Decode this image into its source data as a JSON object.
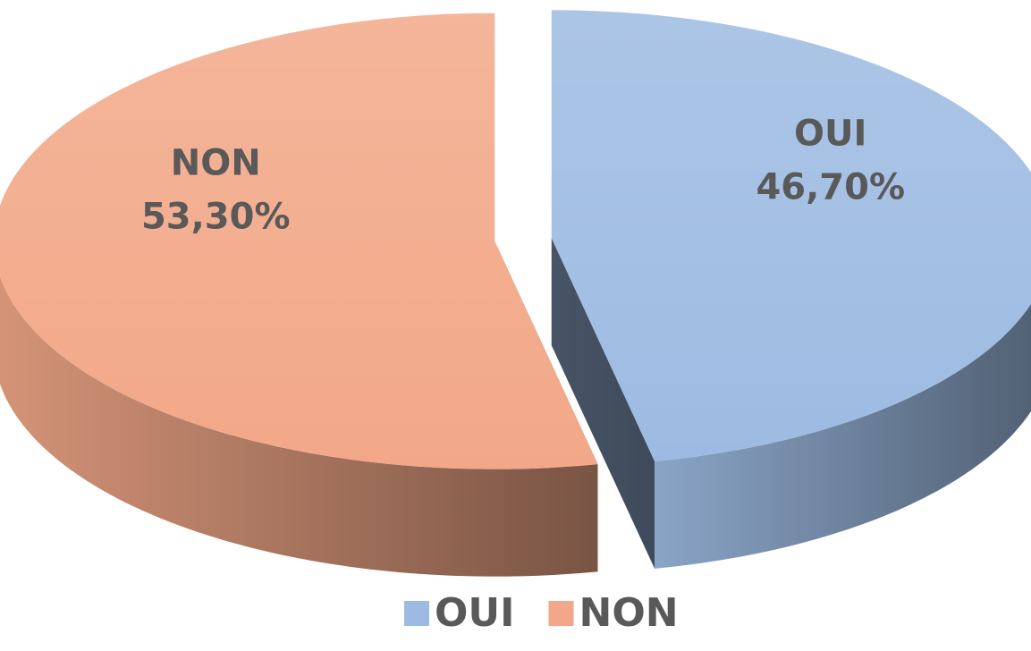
{
  "chart_data": {
    "type": "pie",
    "categories": [
      "OUI",
      "NON"
    ],
    "values": [
      46.7,
      53.3
    ],
    "value_labels": [
      "46,70%",
      "53,30%"
    ],
    "colors": [
      "#9dbbe2",
      "#f2a888"
    ],
    "legend": "bottom"
  }
}
